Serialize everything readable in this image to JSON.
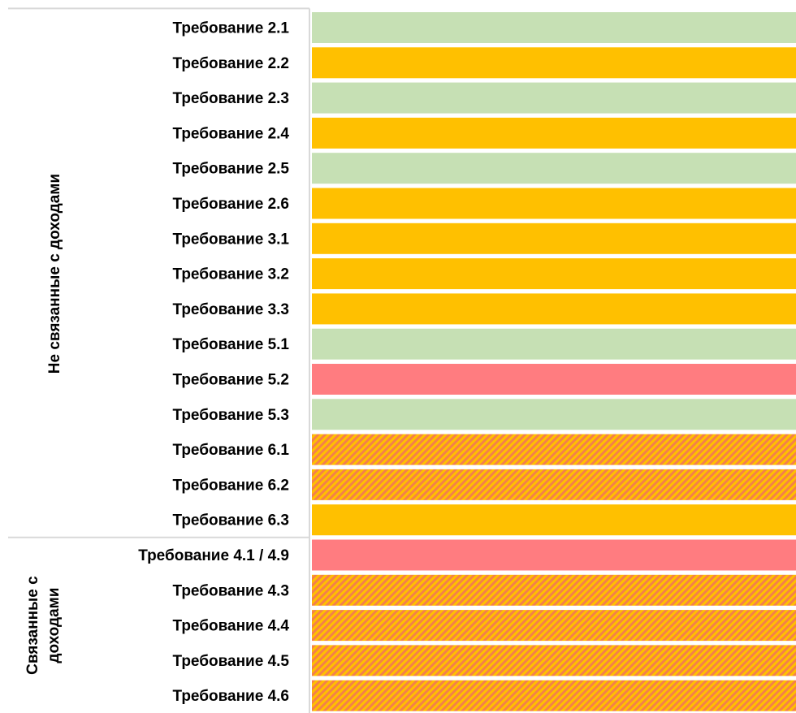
{
  "chart_data": {
    "type": "bar",
    "orientation": "horizontal",
    "grid": false,
    "legend": "none",
    "colors": {
      "green": "#C6E0B4",
      "amber": "#FFC000",
      "red": "#FF7C80",
      "hatched_base": "#FFC000",
      "hatched_stripe": "#F4804A",
      "border": "#D9D9D9"
    },
    "groups": [
      {
        "label": "Не связанные с доходами",
        "rows": [
          {
            "label": "Требование 2.1",
            "status": "green"
          },
          {
            "label": "Требование 2.2",
            "status": "amber"
          },
          {
            "label": "Требование 2.3",
            "status": "green"
          },
          {
            "label": "Требование 2.4",
            "status": "amber"
          },
          {
            "label": "Требование 2.5",
            "status": "green"
          },
          {
            "label": "Требование 2.6",
            "status": "amber"
          },
          {
            "label": "Требование 3.1",
            "status": "amber"
          },
          {
            "label": "Требование 3.2",
            "status": "amber"
          },
          {
            "label": "Требование 3.3",
            "status": "amber"
          },
          {
            "label": "Требование 5.1",
            "status": "green"
          },
          {
            "label": "Требование 5.2",
            "status": "red"
          },
          {
            "label": "Требование 5.3",
            "status": "green"
          },
          {
            "label": "Требование 6.1",
            "status": "hatched"
          },
          {
            "label": "Требование 6.2",
            "status": "hatched"
          },
          {
            "label": "Требование 6.3",
            "status": "amber"
          }
        ]
      },
      {
        "label": "Связанные с доходами",
        "rows": [
          {
            "label": "Требование 4.1 / 4.9",
            "status": "red"
          },
          {
            "label": "Требование 4.3",
            "status": "hatched"
          },
          {
            "label": "Требование 4.4",
            "status": "hatched"
          },
          {
            "label": "Требование 4.5",
            "status": "hatched"
          },
          {
            "label": "Требование 4.6",
            "status": "hatched"
          }
        ]
      }
    ]
  }
}
